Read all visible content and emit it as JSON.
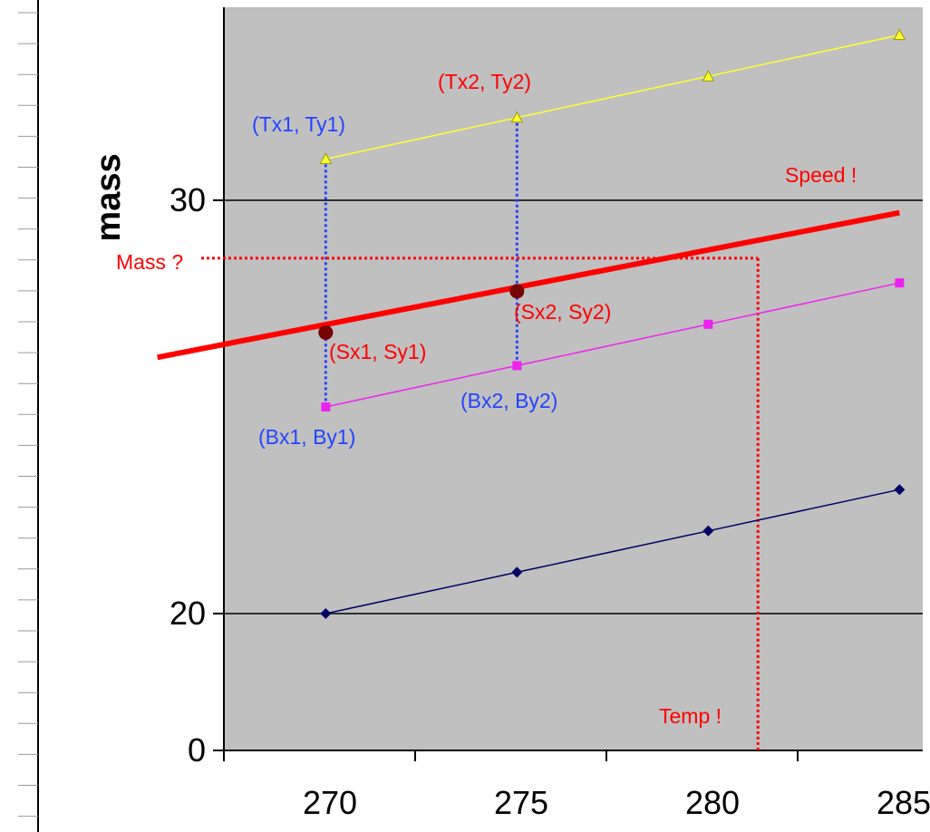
{
  "chart_data": {
    "type": "line",
    "title": "",
    "xlabel": "",
    "ylabel": "mass",
    "x_ticks": [
      270,
      275,
      280,
      285
    ],
    "y_ticks": [
      0,
      20,
      30
    ],
    "y_gridlines": [
      20,
      30
    ],
    "series": [
      {
        "name": "",
        "color": "#ffff33",
        "marker": "triangle",
        "points": [
          [
            269.7,
            31.0
          ],
          [
            274.7,
            32.0
          ],
          [
            279.7,
            33.0
          ],
          [
            284.7,
            34.0
          ]
        ]
      },
      {
        "name": "",
        "color": "#ff0000",
        "marker": "none",
        "thick": true,
        "points": [
          [
            265.3,
            26.2
          ],
          [
            284.7,
            29.7
          ]
        ]
      },
      {
        "name": "",
        "color": "#ee22ee",
        "marker": "square",
        "points": [
          [
            269.7,
            25.0
          ],
          [
            274.7,
            26.0
          ],
          [
            279.7,
            27.0
          ],
          [
            284.7,
            28.0
          ]
        ]
      },
      {
        "name": "",
        "color": "#000066",
        "marker": "diamond",
        "points": [
          [
            269.7,
            20.0
          ],
          [
            274.7,
            21.0
          ],
          [
            279.7,
            22.0
          ],
          [
            284.7,
            23.0
          ]
        ]
      }
    ],
    "interpolation": {
      "S1": [
        269.7,
        26.8
      ],
      "S2": [
        274.7,
        27.8
      ],
      "result": [
        281.0,
        28.6
      ]
    },
    "annotations": {
      "tx1": "(Tx1, Ty1)",
      "tx2": "(Tx2, Ty2)",
      "sx1": "(Sx1, Sy1)",
      "sx2": "(Sx2, Sy2)",
      "bx1": "(Bx1, By1)",
      "bx2": "(Bx2, By2)",
      "speed": "Speed !",
      "mass": "Mass ?",
      "temp": "Temp !"
    },
    "colors": {
      "plot_bg": "#c0c0c0",
      "annotation_blue": "#2244ff",
      "annotation_red": "#ff0000",
      "interp_point": "#770000"
    }
  }
}
